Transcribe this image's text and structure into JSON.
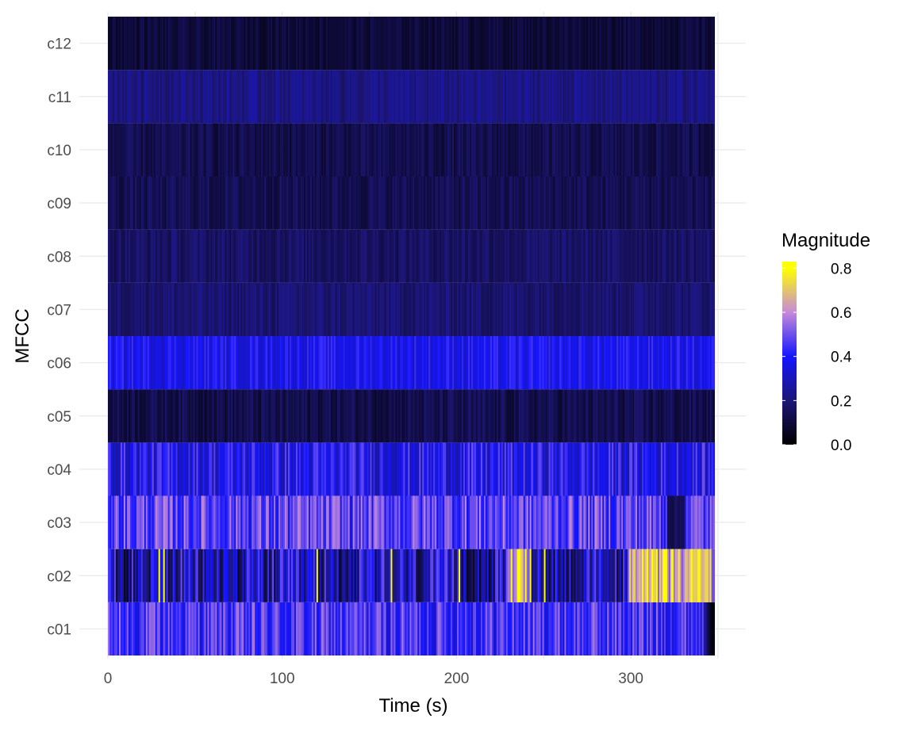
{
  "chart_data": {
    "type": "heatmap",
    "title": "",
    "xlabel": "Time (s)",
    "ylabel": "MFCC",
    "xlim": [
      0,
      350
    ],
    "x_ticks": [
      0,
      100,
      200,
      300
    ],
    "x_tick_labels": [
      "0",
      "100",
      "200",
      "300"
    ],
    "time_range": [
      0,
      348
    ],
    "rows": [
      "c01",
      "c02",
      "c03",
      "c04",
      "c05",
      "c06",
      "c07",
      "c08",
      "c09",
      "c10",
      "c11",
      "c12"
    ],
    "row_profiles": [
      {
        "row": "c01",
        "mean": 0.45,
        "spread": 0.12,
        "note": "fades to near 0 after ~345 s"
      },
      {
        "row": "c02",
        "mean": 0.28,
        "spread": 0.22,
        "note": "peaks ~0.8 around 230-240 s and 300-345 s"
      },
      {
        "row": "c03",
        "mean": 0.48,
        "spread": 0.12
      },
      {
        "row": "c04",
        "mean": 0.38,
        "spread": 0.12
      },
      {
        "row": "c05",
        "mean": 0.13,
        "spread": 0.06
      },
      {
        "row": "c06",
        "mean": 0.38,
        "spread": 0.07
      },
      {
        "row": "c07",
        "mean": 0.19,
        "spread": 0.05
      },
      {
        "row": "c08",
        "mean": 0.17,
        "spread": 0.05
      },
      {
        "row": "c09",
        "mean": 0.14,
        "spread": 0.05
      },
      {
        "row": "c10",
        "mean": 0.13,
        "spread": 0.05
      },
      {
        "row": "c11",
        "mean": 0.22,
        "spread": 0.05
      },
      {
        "row": "c12",
        "mean": 0.1,
        "spread": 0.04
      }
    ],
    "color_scale": {
      "title": "Magnitude",
      "stops": [
        {
          "value": 0.0,
          "color": "#000000"
        },
        {
          "value": 0.2,
          "color": "#1d1676"
        },
        {
          "value": 0.4,
          "color": "#1515ff"
        },
        {
          "value": 0.6,
          "color": "#c58ad9"
        },
        {
          "value": 0.8,
          "color": "#ffff00"
        }
      ],
      "limits": [
        0.0,
        0.83
      ],
      "breaks": [
        0.0,
        0.2,
        0.4,
        0.6,
        0.8
      ],
      "break_labels": [
        "0.0",
        "0.2",
        "0.4",
        "0.6",
        "0.8"
      ]
    },
    "grid": true,
    "legend_position": "right"
  }
}
